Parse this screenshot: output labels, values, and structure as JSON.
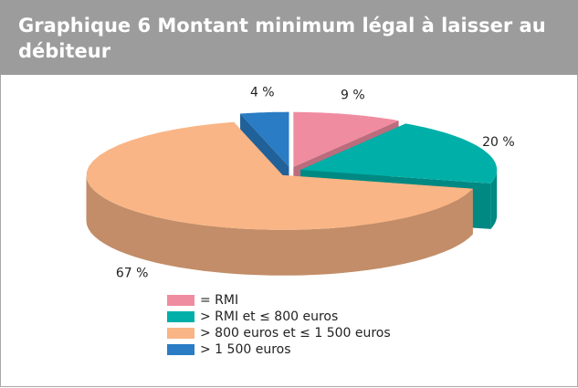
{
  "chart_data": {
    "type": "pie3d",
    "title": "Graphique 6 Montant minimum légal à laisser au débiteur",
    "categories": [
      "= RMI",
      "> RMI et ≤ 800 euros",
      "> 800 euros et ≤ 1 500 euros",
      "> 1 500 euros"
    ],
    "values": [
      9,
      20,
      67,
      4
    ],
    "value_labels": [
      "9 %",
      "20 %",
      "67 %",
      "4 %"
    ],
    "colors": [
      "#f08ca0",
      "#00b0a8",
      "#f9b585",
      "#2a7cc4"
    ],
    "legend": "bottom"
  }
}
